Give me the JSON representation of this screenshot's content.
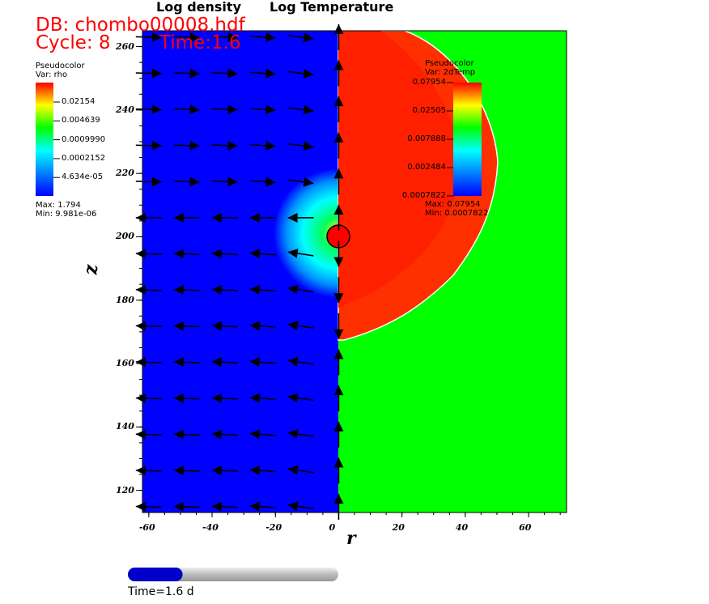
{
  "header": {
    "db": "DB: chombo00008.hdf",
    "cycle": "Cycle: 8",
    "time": "Time:1.6",
    "title_left": "Log density",
    "title_right": "Log Temperature"
  },
  "legend_rho": {
    "title": "Pseudocolor",
    "var": "Var: rho",
    "ticks": [
      "0.02154",
      "0.004639",
      "0.0009990",
      "0.0002152",
      "4.634e-05"
    ],
    "max": "Max:  1.794",
    "min": "Min:  9.981e-06"
  },
  "legend_temp": {
    "title": "Pseudocolor",
    "var": "Var: 2dTemp",
    "ticks": [
      "0.07954",
      "0.02505",
      "0.007888",
      "0.002484",
      "0.0007822"
    ],
    "max": "Max:  0.07954",
    "min": "Min:  0.0007822"
  },
  "time_slider": {
    "label": "Time=1.6 d",
    "progress": 0.26
  },
  "chart_data": {
    "type": "heatmap",
    "title": "Log density | Log Temperature",
    "xlabel": "r",
    "ylabel": "z",
    "xlim": [
      -62,
      72
    ],
    "ylim": [
      113,
      265
    ],
    "xticks": [
      "-60",
      "-40",
      "-20",
      "0",
      "20",
      "40",
      "60"
    ],
    "yticks": [
      "260",
      "240",
      "220",
      "200",
      "180",
      "160",
      "140",
      "120"
    ],
    "colors": {
      "low": "#0000ff",
      "high": "#ff0000",
      "ambient_temp": "#00ff00"
    }
  }
}
